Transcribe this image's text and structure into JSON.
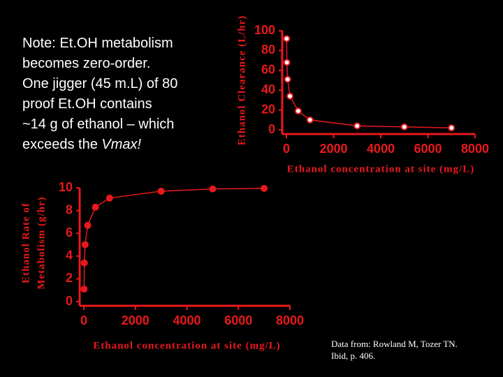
{
  "note_lines": [
    "Note: Et.OH metabolism",
    "becomes zero-order.",
    "One jigger (45 m.L) of 80",
    "proof Et.OH contains",
    "~14 g of ethanol – which",
    "exceeds the"
  ],
  "note_emphasis": "Vmax!",
  "source_lines": [
    "Data from: Rowland M, Tozer TN.",
    "Ibid, p. 406."
  ],
  "chart_data": [
    {
      "type": "line",
      "y_label": "Ethanol Clearance (L/hr)",
      "x_label": "Ethanol concentration at site (mg/L)",
      "x": [
        10,
        20,
        50,
        150,
        500,
        1000,
        3000,
        5000,
        7000
      ],
      "values": [
        92,
        68,
        51,
        34,
        19,
        10,
        4,
        3,
        2
      ],
      "color": "#e8191c",
      "marker_fill": "#ffffff",
      "xlim": [
        0,
        8000
      ],
      "xticks": [
        0,
        2000,
        4000,
        6000,
        8000
      ],
      "ylim": [
        0,
        100
      ],
      "yticks": [
        0,
        20,
        40,
        60,
        80,
        100
      ]
    },
    {
      "type": "line",
      "y_label": [
        "Ethanol Rate of",
        "Metabolism (g/hr)"
      ],
      "x_label": "Ethanol concentration at site (mg/L)",
      "x": [
        10,
        20,
        50,
        150,
        450,
        1000,
        3000,
        5000,
        7000
      ],
      "values": [
        1.1,
        3.4,
        5.0,
        6.7,
        8.3,
        9.1,
        9.7,
        9.9,
        9.95
      ],
      "color": "#e8191c",
      "marker_fill": "#e8191c",
      "xlim": [
        0,
        8000
      ],
      "xticks": [
        0,
        2000,
        4000,
        6000,
        8000
      ],
      "ylim": [
        0,
        10
      ],
      "yticks": [
        0,
        2,
        4,
        6,
        8,
        10
      ]
    }
  ]
}
